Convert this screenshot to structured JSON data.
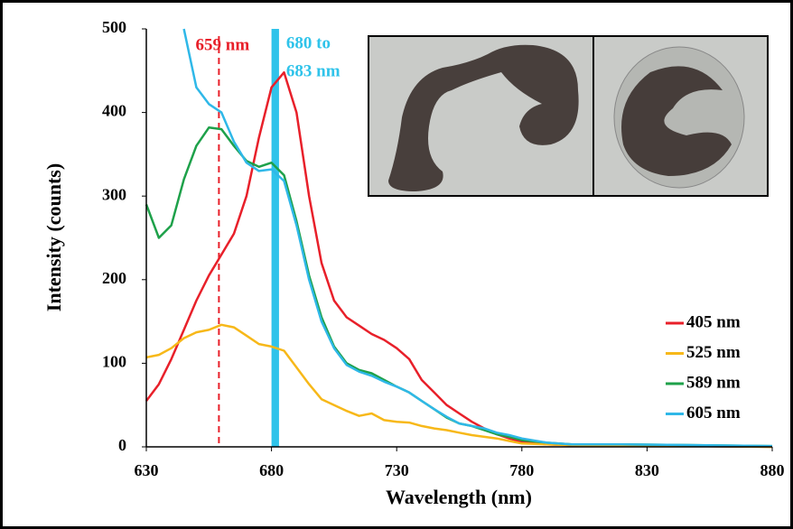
{
  "chart_data": {
    "type": "line",
    "x_label": "Wavelength (nm)",
    "y_label": "Intensity (counts)",
    "x": [
      630,
      635,
      640,
      645,
      650,
      655,
      660,
      665,
      670,
      675,
      680,
      685,
      690,
      695,
      700,
      705,
      710,
      715,
      720,
      725,
      730,
      735,
      740,
      745,
      750,
      755,
      760,
      765,
      770,
      775,
      780,
      790,
      800,
      820,
      850,
      880
    ],
    "series": [
      {
        "name": "405 nm",
        "color": "#e8202a",
        "values": [
          55,
          75,
          105,
          140,
          175,
          205,
          230,
          255,
          300,
          370,
          430,
          448,
          400,
          300,
          220,
          175,
          155,
          145,
          135,
          128,
          118,
          105,
          80,
          65,
          50,
          40,
          30,
          22,
          15,
          10,
          6,
          3,
          2,
          1,
          1,
          0
        ]
      },
      {
        "name": "525 nm",
        "color": "#f7b819",
        "values": [
          107,
          110,
          118,
          130,
          137,
          140,
          146,
          143,
          133,
          123,
          120,
          115,
          95,
          75,
          57,
          50,
          43,
          37,
          40,
          32,
          30,
          29,
          25,
          22,
          20,
          17,
          14,
          12,
          10,
          7,
          4,
          3,
          2,
          1,
          1,
          0
        ]
      },
      {
        "name": "589 nm",
        "color": "#1ea14a",
        "values": [
          290,
          250,
          265,
          320,
          360,
          382,
          380,
          360,
          342,
          335,
          340,
          325,
          270,
          205,
          155,
          120,
          100,
          92,
          88,
          80,
          72,
          65,
          55,
          45,
          35,
          28,
          25,
          20,
          15,
          12,
          8,
          5,
          3,
          3,
          2,
          1
        ]
      },
      {
        "name": "605 nm",
        "color": "#2fb8e8",
        "values": [
          null,
          null,
          null,
          500,
          430,
          410,
          400,
          365,
          340,
          330,
          332,
          318,
          265,
          200,
          150,
          118,
          98,
          90,
          85,
          78,
          72,
          65,
          55,
          45,
          36,
          28,
          25,
          22,
          17,
          14,
          10,
          5,
          3,
          3,
          2,
          1
        ]
      }
    ],
    "xlim": [
      630,
      880
    ],
    "xticks": [
      630,
      680,
      730,
      780,
      830,
      880
    ],
    "ylim": [
      0,
      500
    ],
    "yticks": [
      0,
      100,
      200,
      300,
      400,
      500
    ],
    "legend": "lower right",
    "annotations": [
      {
        "text": "659 nm",
        "x": 659,
        "color": "#e8202a",
        "style": "dashed"
      },
      {
        "lines": [
          "680 to",
          "683 nm"
        ],
        "x": [
          680,
          683
        ],
        "color": "#2fc3ea",
        "style": "band"
      }
    ]
  }
}
